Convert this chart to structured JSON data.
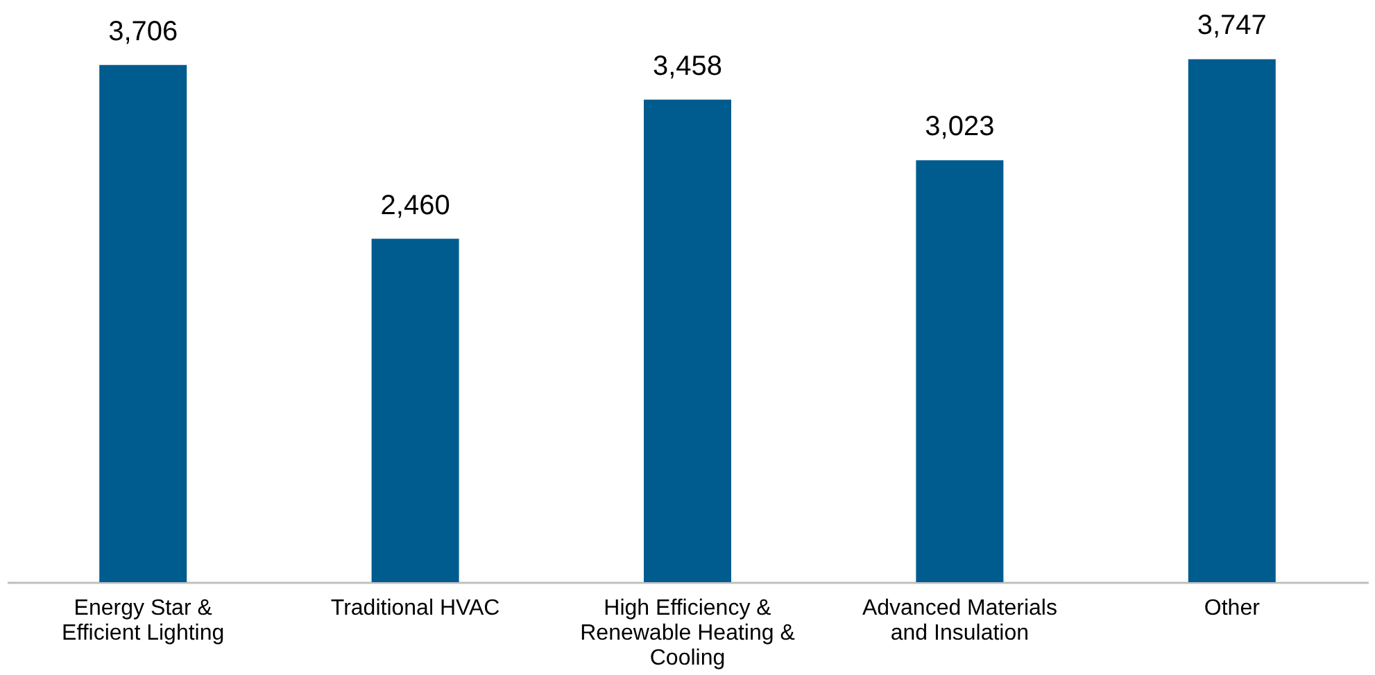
{
  "chart_data": {
    "type": "bar",
    "categories": [
      "Energy Star & Efficient Lighting",
      "Traditional HVAC",
      "High Efficiency & Renewable Heating & Cooling",
      "Advanced Materials and Insulation",
      "Other"
    ],
    "values": [
      3706,
      2460,
      3458,
      3023,
      3747
    ],
    "value_labels": [
      "3,706",
      "2,460",
      "3,458",
      "3,023",
      "3,747"
    ],
    "color": "#005b8f",
    "grid": false
  }
}
